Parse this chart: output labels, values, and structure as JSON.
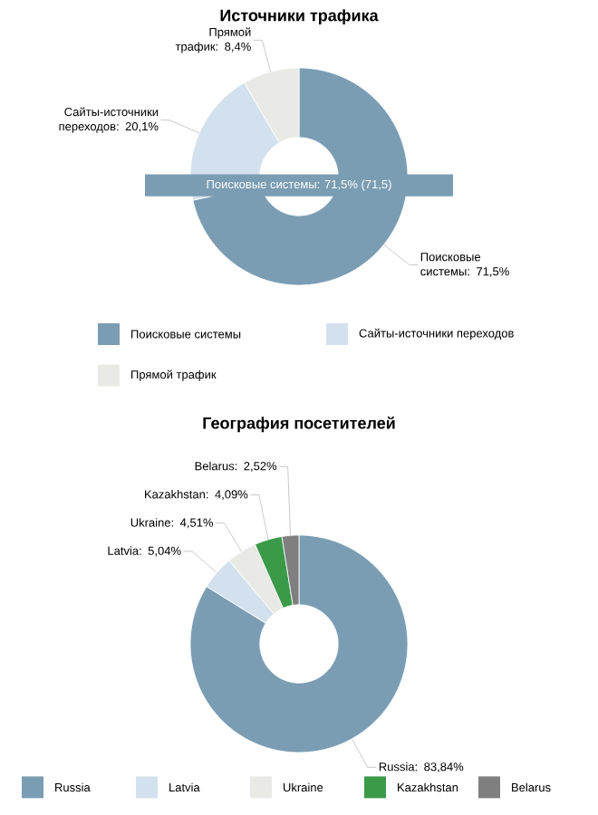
{
  "chart_data": [
    {
      "type": "donut",
      "title": "Источники трафика",
      "categories": [
        "Поисковые системы",
        "Сайты-источники переходов",
        "Прямой трафик"
      ],
      "values": [
        71.5,
        20.1,
        8.4
      ],
      "colors": [
        "#7a9db3",
        "#d3e1ee",
        "#e9eae6"
      ],
      "value_labels": [
        "Поисковые системы: 71,5%",
        "Сайты-источники переходов: 20,1%",
        "Прямой трафик: 8,4%"
      ],
      "annotations": [
        "Поисковые системы: 71,5% (71,5)"
      ],
      "legend": "bottom"
    },
    {
      "type": "donut",
      "title": "География посетителей",
      "categories": [
        "Russia",
        "Latvia",
        "Ukraine",
        "Kazakhstan",
        "Belarus"
      ],
      "values": [
        83.84,
        5.04,
        4.51,
        4.09,
        2.52
      ],
      "colors": [
        "#7a9db3",
        "#d3e1ee",
        "#e9eae6",
        "#3a9a48",
        "#7f7f7f"
      ],
      "value_labels": [
        "Russia: 83,84%",
        "Latvia: 5,04%",
        "Ukraine: 4,51%",
        "Kazakhstan: 4,09%",
        "Belarus: 2,52%"
      ],
      "legend": "bottom"
    }
  ]
}
